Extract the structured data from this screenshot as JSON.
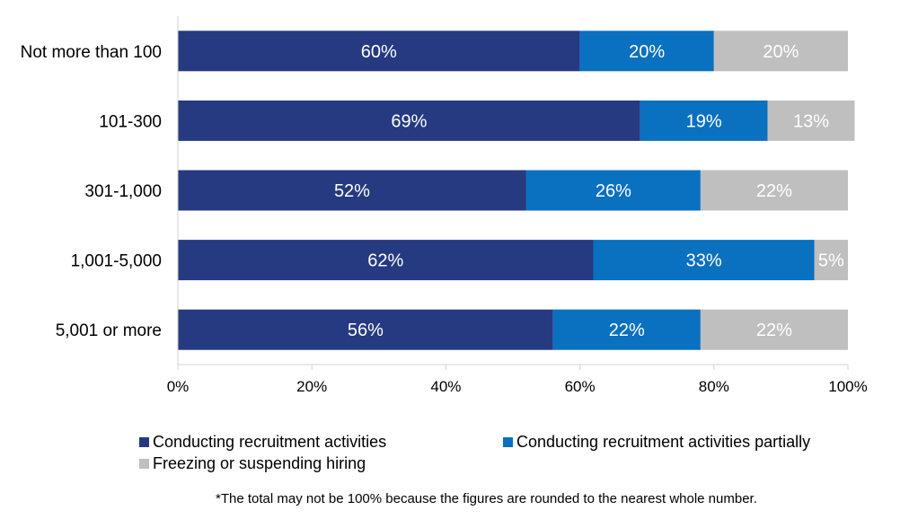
{
  "chart_data": {
    "type": "bar",
    "orientation": "horizontal",
    "stacked": true,
    "categories": [
      "Not more than 100",
      "101-300",
      "301-1,000",
      "1,001-5,000",
      "5,001 or more"
    ],
    "series": [
      {
        "name": "Conducting recruitment activities",
        "color": "#253a80",
        "values": [
          60,
          69,
          52,
          62,
          56
        ],
        "labels": [
          "60%",
          "69%",
          "52%",
          "62%",
          "56%"
        ]
      },
      {
        "name": "Conducting recruitment activities partially",
        "color": "#0a70c0",
        "values": [
          20,
          19,
          26,
          33,
          22
        ],
        "labels": [
          "20%",
          "19%",
          "26%",
          "33%",
          "22%"
        ]
      },
      {
        "name": "Freezing or suspending hiring",
        "color": "#bfbfbf",
        "values": [
          20,
          13,
          22,
          5,
          22
        ],
        "labels": [
          "20%",
          "13%",
          "22%",
          "5%",
          "22%"
        ]
      }
    ],
    "xlim": [
      0,
      100
    ],
    "xticks": [
      "0%",
      "20%",
      "40%",
      "60%",
      "80%",
      "100%"
    ],
    "grid": false,
    "legend_position": "bottom"
  },
  "footnote": "*The total may not be 100% because the figures are rounded to the nearest whole number."
}
